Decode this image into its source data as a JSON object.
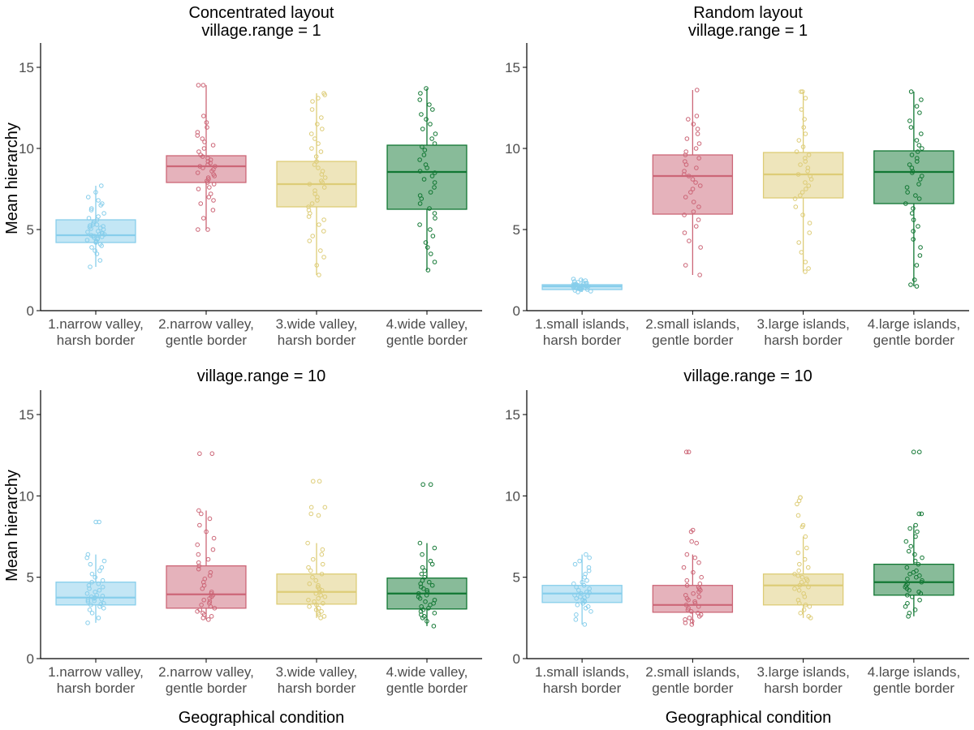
{
  "figure": {
    "ylabel": "Mean hierarchy",
    "xlabel": "Geographical condition"
  },
  "colors": {
    "c1": "#87CEEB",
    "c2": "#CC6677",
    "c3": "#DDCC77",
    "c4": "#117733",
    "axis": "#000000",
    "tick_text": "#4d4d4d"
  },
  "chart_data": [
    {
      "type": "box",
      "title": [
        "Concentrated layout",
        "village.range = 1"
      ],
      "ylim": [
        0,
        16.5
      ],
      "yticks": [
        0,
        5,
        10,
        15
      ],
      "categories": [
        [
          "1.narrow valley,",
          "harsh border"
        ],
        [
          "2.narrow valley,",
          "gentle border"
        ],
        [
          "3.wide valley,",
          "harsh border"
        ],
        [
          "4.wide valley,",
          "gentle border"
        ]
      ],
      "boxes": [
        {
          "q1": 4.2,
          "median": 4.65,
          "q3": 5.6,
          "whisker_low": 2.7,
          "whisker_high": 7.7,
          "points": [
            2.7,
            3.1,
            3.5,
            3.7,
            3.9,
            4.0,
            4.1,
            4.2,
            4.25,
            4.3,
            4.35,
            4.4,
            4.45,
            4.5,
            4.55,
            4.6,
            4.6,
            4.65,
            4.7,
            4.7,
            4.75,
            4.8,
            4.85,
            4.9,
            5.0,
            5.05,
            5.1,
            5.15,
            5.2,
            5.25,
            5.3,
            5.3,
            5.4,
            5.5,
            5.6,
            5.7,
            5.8,
            6.0,
            6.2,
            6.3,
            6.5,
            6.6,
            6.8,
            7.0,
            7.3,
            7.7
          ]
        },
        {
          "q1": 7.9,
          "median": 8.9,
          "q3": 9.55,
          "whisker_low": 5.0,
          "whisker_high": 13.9,
          "points": [
            5.0,
            5.0,
            5.7,
            6.2,
            6.6,
            6.8,
            7.0,
            7.2,
            7.5,
            7.6,
            7.8,
            7.9,
            8.0,
            8.1,
            8.2,
            8.3,
            8.4,
            8.5,
            8.6,
            8.7,
            8.8,
            8.9,
            8.9,
            9.0,
            9.1,
            9.2,
            9.3,
            9.4,
            9.5,
            9.6,
            9.8,
            10.0,
            10.2,
            10.4,
            10.6,
            10.8,
            11.0,
            11.3,
            11.6,
            12.0,
            13.9,
            13.9
          ]
        },
        {
          "q1": 6.4,
          "median": 7.8,
          "q3": 9.2,
          "whisker_low": 2.2,
          "whisker_high": 13.4,
          "points": [
            2.2,
            2.8,
            3.3,
            3.7,
            4.3,
            4.6,
            4.9,
            5.3,
            5.6,
            5.8,
            6.0,
            6.2,
            6.4,
            6.6,
            6.8,
            7.0,
            7.2,
            7.4,
            7.6,
            7.8,
            7.9,
            8.0,
            8.2,
            8.4,
            8.6,
            8.8,
            9.0,
            9.2,
            9.5,
            9.8,
            10.0,
            10.3,
            10.6,
            10.9,
            11.2,
            11.5,
            11.9,
            12.4,
            12.9,
            13.1,
            13.3,
            13.4
          ]
        },
        {
          "q1": 6.25,
          "median": 8.55,
          "q3": 10.2,
          "whisker_low": 2.5,
          "whisker_high": 13.7,
          "points": [
            2.5,
            3.0,
            3.5,
            3.9,
            4.2,
            4.6,
            5.0,
            5.3,
            5.7,
            6.0,
            6.3,
            6.6,
            6.9,
            7.1,
            7.3,
            7.6,
            7.9,
            8.1,
            8.3,
            8.5,
            8.6,
            8.8,
            9.0,
            9.3,
            9.6,
            9.9,
            10.1,
            10.3,
            10.6,
            10.9,
            11.2,
            11.5,
            11.8,
            12.1,
            12.4,
            12.7,
            13.0,
            13.4,
            13.7
          ]
        }
      ]
    },
    {
      "type": "box",
      "title": [
        "Random layout",
        "village.range = 1"
      ],
      "ylim": [
        0,
        16.5
      ],
      "yticks": [
        0,
        5,
        10,
        15
      ],
      "categories": [
        [
          "1.small islands,",
          "harsh border"
        ],
        [
          "2.small islands,",
          "gentle border"
        ],
        [
          "3.large islands,",
          "harsh border"
        ],
        [
          "4.large islands,",
          "gentle border"
        ]
      ],
      "boxes": [
        {
          "q1": 1.3,
          "median": 1.5,
          "q3": 1.6,
          "whisker_low": 1.15,
          "whisker_high": 1.95,
          "points": [
            1.15,
            1.2,
            1.25,
            1.3,
            1.3,
            1.35,
            1.35,
            1.4,
            1.4,
            1.42,
            1.45,
            1.45,
            1.48,
            1.5,
            1.5,
            1.5,
            1.52,
            1.55,
            1.55,
            1.58,
            1.6,
            1.6,
            1.62,
            1.65,
            1.65,
            1.7,
            1.7,
            1.75,
            1.8,
            1.85,
            1.9,
            1.95
          ]
        },
        {
          "q1": 5.95,
          "median": 8.3,
          "q3": 9.6,
          "whisker_low": 2.2,
          "whisker_high": 13.6,
          "points": [
            2.2,
            2.8,
            3.9,
            4.3,
            4.8,
            5.2,
            5.6,
            5.9,
            6.1,
            6.4,
            6.7,
            7.0,
            7.3,
            7.5,
            7.7,
            7.9,
            8.1,
            8.3,
            8.4,
            8.6,
            8.8,
            9.0,
            9.2,
            9.4,
            9.6,
            9.8,
            10.0,
            10.3,
            10.6,
            10.9,
            11.2,
            11.5,
            11.8,
            12.0,
            13.6
          ]
        },
        {
          "q1": 6.95,
          "median": 8.4,
          "q3": 9.75,
          "whisker_low": 2.4,
          "whisker_high": 13.5,
          "points": [
            2.4,
            2.6,
            3.0,
            3.6,
            4.2,
            4.8,
            5.4,
            5.9,
            6.4,
            6.9,
            7.1,
            7.3,
            7.5,
            7.7,
            7.9,
            8.1,
            8.3,
            8.4,
            8.6,
            8.8,
            9.0,
            9.2,
            9.4,
            9.6,
            9.8,
            10.1,
            10.5,
            10.9,
            11.3,
            11.8,
            12.4,
            13.1,
            13.5,
            13.5
          ]
        },
        {
          "q1": 6.6,
          "median": 8.55,
          "q3": 9.85,
          "whisker_low": 1.5,
          "whisker_high": 13.5,
          "points": [
            1.5,
            1.6,
            1.9,
            2.8,
            3.4,
            3.9,
            4.4,
            4.9,
            5.2,
            5.6,
            6.0,
            6.3,
            6.6,
            6.9,
            7.1,
            7.3,
            7.6,
            7.8,
            8.1,
            8.3,
            8.5,
            8.6,
            8.8,
            9.0,
            9.2,
            9.4,
            9.6,
            9.8,
            10.0,
            10.2,
            10.5,
            10.9,
            11.3,
            11.7,
            12.2,
            12.6,
            13.0,
            13.5
          ]
        }
      ]
    },
    {
      "type": "box",
      "title": [
        "village.range = 10"
      ],
      "ylim": [
        0,
        16.5
      ],
      "yticks": [
        0,
        5,
        10,
        15
      ],
      "categories": [
        [
          "1.narrow valley,",
          "harsh border"
        ],
        [
          "2.narrow valley,",
          "gentle border"
        ],
        [
          "3.wide valley,",
          "harsh border"
        ],
        [
          "4.wide valley,",
          "gentle border"
        ]
      ],
      "boxes": [
        {
          "q1": 3.3,
          "median": 3.75,
          "q3": 4.7,
          "whisker_low": 2.2,
          "whisker_high": 6.4,
          "points": [
            2.2,
            2.5,
            2.8,
            3.0,
            3.1,
            3.2,
            3.3,
            3.35,
            3.4,
            3.5,
            3.55,
            3.6,
            3.65,
            3.7,
            3.75,
            3.8,
            3.85,
            3.9,
            4.0,
            4.1,
            4.2,
            4.3,
            4.4,
            4.5,
            4.6,
            4.7,
            4.8,
            5.0,
            5.2,
            5.4,
            5.6,
            5.8,
            6.0,
            6.2,
            6.4,
            8.4,
            8.4
          ]
        },
        {
          "q1": 3.1,
          "median": 3.95,
          "q3": 5.7,
          "whisker_low": 2.4,
          "whisker_high": 9.1,
          "points": [
            2.4,
            2.5,
            2.6,
            2.7,
            2.8,
            2.9,
            3.0,
            3.1,
            3.2,
            3.3,
            3.4,
            3.5,
            3.6,
            3.7,
            3.8,
            3.9,
            4.0,
            4.1,
            4.3,
            4.5,
            4.7,
            4.9,
            5.1,
            5.3,
            5.5,
            5.7,
            5.9,
            6.1,
            6.4,
            6.7,
            7.0,
            7.4,
            7.8,
            8.2,
            8.6,
            8.9,
            9.1,
            12.6,
            12.6
          ]
        },
        {
          "q1": 3.35,
          "median": 4.1,
          "q3": 5.2,
          "whisker_low": 2.5,
          "whisker_high": 7.1,
          "points": [
            2.5,
            2.6,
            2.7,
            2.8,
            2.9,
            3.0,
            3.1,
            3.2,
            3.3,
            3.4,
            3.5,
            3.6,
            3.7,
            3.8,
            3.9,
            4.0,
            4.1,
            4.2,
            4.3,
            4.4,
            4.5,
            4.6,
            4.8,
            5.0,
            5.2,
            5.4,
            5.6,
            5.8,
            6.1,
            6.4,
            6.7,
            7.1,
            8.8,
            8.9,
            9.3,
            9.3,
            10.9,
            10.9
          ]
        },
        {
          "q1": 3.05,
          "median": 4.0,
          "q3": 4.95,
          "whisker_low": 2.0,
          "whisker_high": 7.1,
          "points": [
            2.0,
            2.3,
            2.5,
            2.6,
            2.7,
            2.8,
            2.9,
            3.0,
            3.1,
            3.2,
            3.3,
            3.4,
            3.5,
            3.6,
            3.7,
            3.8,
            3.9,
            4.0,
            4.1,
            4.2,
            4.3,
            4.4,
            4.5,
            4.6,
            4.7,
            4.8,
            5.0,
            5.2,
            5.4,
            5.6,
            5.8,
            6.0,
            6.4,
            6.8,
            7.1,
            10.7,
            10.7
          ]
        }
      ]
    },
    {
      "type": "box",
      "title": [
        "village.range = 10"
      ],
      "ylim": [
        0,
        16.5
      ],
      "yticks": [
        0,
        5,
        10,
        15
      ],
      "categories": [
        [
          "1.small islands,",
          "harsh border"
        ],
        [
          "2.small islands,",
          "gentle border"
        ],
        [
          "3.large islands,",
          "harsh border"
        ],
        [
          "4.large islands,",
          "gentle border"
        ]
      ],
      "boxes": [
        {
          "q1": 3.45,
          "median": 4.0,
          "q3": 4.5,
          "whisker_low": 2.1,
          "whisker_high": 6.4,
          "points": [
            2.1,
            2.4,
            2.7,
            2.9,
            3.1,
            3.2,
            3.3,
            3.4,
            3.5,
            3.55,
            3.6,
            3.7,
            3.75,
            3.8,
            3.85,
            3.9,
            4.0,
            4.05,
            4.1,
            4.2,
            4.3,
            4.4,
            4.5,
            4.6,
            4.7,
            4.8,
            5.0,
            5.2,
            5.4,
            5.6,
            5.8,
            6.0,
            6.2,
            6.4
          ]
        },
        {
          "q1": 2.85,
          "median": 3.3,
          "q3": 4.5,
          "whisker_low": 2.1,
          "whisker_high": 6.4,
          "points": [
            2.1,
            2.2,
            2.3,
            2.4,
            2.5,
            2.6,
            2.7,
            2.8,
            2.9,
            3.0,
            3.1,
            3.2,
            3.3,
            3.4,
            3.5,
            3.6,
            3.7,
            3.8,
            3.9,
            4.0,
            4.1,
            4.2,
            4.3,
            4.4,
            4.5,
            4.6,
            4.8,
            5.0,
            5.3,
            5.6,
            5.9,
            6.2,
            6.4,
            7.1,
            7.2,
            7.8,
            7.9,
            12.7,
            12.7
          ]
        },
        {
          "q1": 3.3,
          "median": 4.5,
          "q3": 5.2,
          "whisker_low": 2.5,
          "whisker_high": 7.5,
          "points": [
            2.5,
            2.6,
            2.8,
            3.0,
            3.2,
            3.3,
            3.4,
            3.6,
            3.8,
            4.0,
            4.2,
            4.3,
            4.4,
            4.5,
            4.6,
            4.7,
            4.8,
            4.9,
            5.0,
            5.1,
            5.2,
            5.4,
            5.6,
            5.8,
            6.1,
            6.5,
            6.8,
            7.5,
            8.1,
            8.2,
            8.8,
            9.5,
            9.7,
            9.9,
            9.9
          ]
        },
        {
          "q1": 3.9,
          "median": 4.7,
          "q3": 5.8,
          "whisker_low": 2.6,
          "whisker_high": 8.2,
          "points": [
            2.6,
            2.8,
            3.0,
            3.2,
            3.4,
            3.6,
            3.8,
            3.9,
            4.0,
            4.1,
            4.2,
            4.3,
            4.4,
            4.5,
            4.6,
            4.7,
            4.8,
            4.9,
            5.0,
            5.1,
            5.2,
            5.3,
            5.4,
            5.6,
            5.8,
            6.0,
            6.2,
            6.4,
            6.6,
            6.9,
            7.2,
            7.5,
            7.8,
            8.0,
            8.2,
            8.9,
            8.9,
            12.7,
            12.7
          ]
        }
      ]
    }
  ]
}
